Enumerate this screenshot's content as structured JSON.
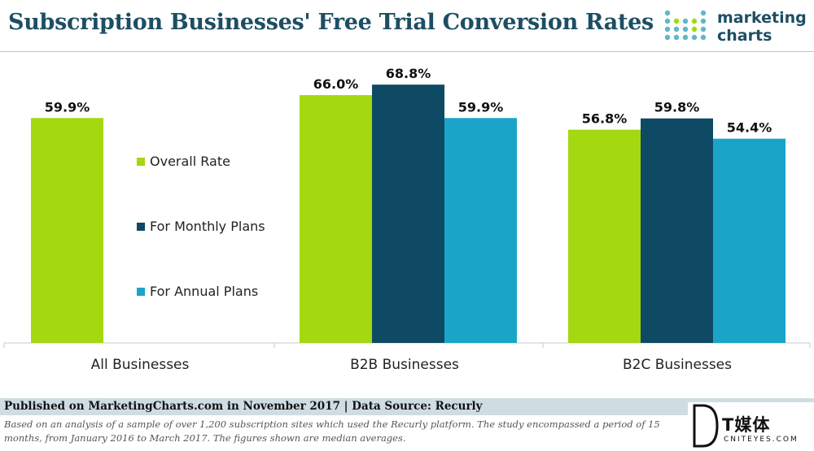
{
  "header": {
    "title": "Subscription Businesses' Free Trial Conversion Rates",
    "logo_line1": "marketing",
    "logo_line2": "charts"
  },
  "colors": {
    "overall": "#a4d810",
    "monthly": "#0e4a63",
    "annual": "#1aa5c8",
    "title": "#1d4e63"
  },
  "chart_data": {
    "type": "bar",
    "title": "Subscription Businesses' Free Trial Conversion Rates",
    "categories": [
      "All Businesses",
      "B2B Businesses",
      "B2C Businesses"
    ],
    "series": [
      {
        "name": "Overall Rate",
        "values": [
          59.9,
          66.0,
          56.8
        ],
        "labels": [
          "59.9%",
          "66.0%",
          "56.8%"
        ]
      },
      {
        "name": "For Monthly Plans",
        "values": [
          null,
          68.8,
          59.8
        ],
        "labels": [
          "",
          "68.8%",
          "59.8%"
        ]
      },
      {
        "name": "For Annual Plans",
        "values": [
          null,
          59.9,
          54.4
        ],
        "labels": [
          "",
          "59.9%",
          "54.4%"
        ]
      }
    ],
    "ylim": [
      0,
      80
    ],
    "grid": false,
    "legend_position": "inside-left"
  },
  "footer": {
    "published": "Published on MarketingCharts.com in November 2017 | Data Source: Recurly",
    "note": "Based on an analysis of a sample of over 1,200 subscription sites which used the Recurly platform. The study encompassed a period of 15 months, from January 2016 to March 2017. The figures shown are median averages."
  },
  "watermark": {
    "main": "T媒体",
    "sub": "CNITEYES.COM"
  }
}
